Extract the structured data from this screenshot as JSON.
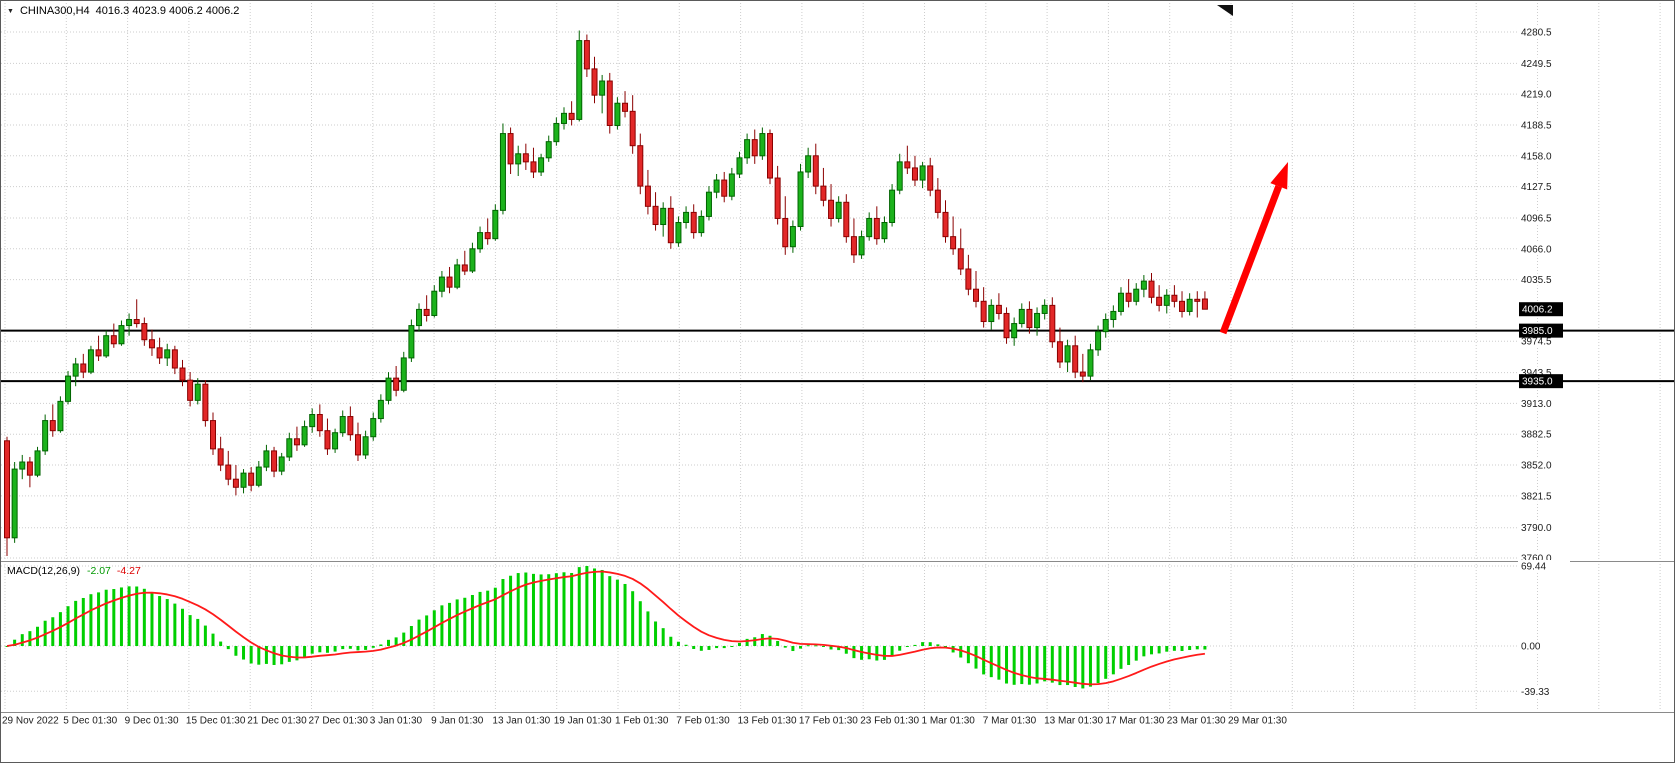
{
  "header": {
    "dropdown_icon": "▼",
    "symbol_period": "CHINA300,H4",
    "quote": "4016.3 4023.9 4006.2 4006.2"
  },
  "macd_header": {
    "label": "MACD(12,26,9)",
    "value_main": "-2.07",
    "value_signal": "-4.27"
  },
  "colors": {
    "background": "#ffffff",
    "grid": "#cdcdcd",
    "bull_fill": "#1CB21C",
    "bull_border": "#006400",
    "bear_fill": "#E22828",
    "bear_border": "#8B0000",
    "hline": "#000000",
    "macd_hist": "#00CF00",
    "macd_signal": "#FF1A1A",
    "arrow": "#FF0000",
    "badge_bg": "#000000",
    "badge_text": "#FFFFFF",
    "axis_text": "#1b1b1b",
    "separator": "#8a8a8a",
    "shift_marker": "#111111"
  },
  "chart_data": {
    "type": "candlestick",
    "symbol": "CHINA300",
    "timeframe": "H4",
    "quote": {
      "open": 4016.3,
      "high": 4023.9,
      "low": 4006.2,
      "close": 4006.2
    },
    "price_axis": {
      "ticks": [
        4280.5,
        4249.5,
        4219.0,
        4188.5,
        4158.0,
        4127.5,
        4096.5,
        4066.0,
        4035.5,
        3974.5,
        3943.5,
        3913.0,
        3882.5,
        3852.0,
        3821.5,
        3790.0,
        3760.0
      ],
      "badges": [
        {
          "label": "4006.2",
          "value": 4006.2,
          "kind": "current-price"
        },
        {
          "label": "3985.0",
          "value": 3985.0,
          "kind": "horizontal-line"
        },
        {
          "label": "3935.0",
          "value": 3935.0,
          "kind": "horizontal-line"
        }
      ]
    },
    "hlines": [
      3985.0,
      3935.0
    ],
    "time_axis": [
      "29 Nov 2022",
      "5 Dec 01:30",
      "9 Dec 01:30",
      "15 Dec 01:30",
      "21 Dec 01:30",
      "27 Dec 01:30",
      "3 Jan 01:30",
      "9 Jan 01:30",
      "13 Jan 01:30",
      "19 Jan 01:30",
      "1 Feb 01:30",
      "7 Feb 01:30",
      "13 Feb 01:30",
      "17 Feb 01:30",
      "23 Feb 01:30",
      "1 Mar 01:30",
      "7 Mar 01:30",
      "13 Mar 01:30",
      "17 Mar 01:30",
      "23 Mar 01:30",
      "29 Mar 01:30"
    ],
    "candles": [
      [
        3876,
        3880,
        3762,
        3780
      ],
      [
        3780,
        3855,
        3775,
        3848
      ],
      [
        3848,
        3862,
        3838,
        3855
      ],
      [
        3855,
        3860,
        3830,
        3842
      ],
      [
        3842,
        3870,
        3840,
        3866
      ],
      [
        3866,
        3902,
        3862,
        3896
      ],
      [
        3896,
        3912,
        3880,
        3886
      ],
      [
        3886,
        3920,
        3884,
        3915
      ],
      [
        3915,
        3945,
        3912,
        3940
      ],
      [
        3940,
        3958,
        3930,
        3952
      ],
      [
        3952,
        3962,
        3938,
        3944
      ],
      [
        3944,
        3970,
        3942,
        3966
      ],
      [
        3966,
        3980,
        3955,
        3960
      ],
      [
        3960,
        3985,
        3958,
        3980
      ],
      [
        3980,
        3992,
        3968,
        3972
      ],
      [
        3972,
        3995,
        3970,
        3990
      ],
      [
        3990,
        4002,
        3980,
        3996
      ],
      [
        3996,
        4016,
        3988,
        3992
      ],
      [
        3992,
        3998,
        3970,
        3976
      ],
      [
        3976,
        3986,
        3960,
        3968
      ],
      [
        3968,
        3978,
        3952,
        3958
      ],
      [
        3958,
        3972,
        3950,
        3966
      ],
      [
        3966,
        3970,
        3942,
        3948
      ],
      [
        3948,
        3956,
        3930,
        3936
      ],
      [
        3936,
        3944,
        3910,
        3916
      ],
      [
        3916,
        3938,
        3912,
        3932
      ],
      [
        3932,
        3936,
        3890,
        3896
      ],
      [
        3896,
        3904,
        3862,
        3868
      ],
      [
        3868,
        3880,
        3846,
        3852
      ],
      [
        3852,
        3866,
        3832,
        3838
      ],
      [
        3838,
        3852,
        3822,
        3830
      ],
      [
        3830,
        3848,
        3824,
        3844
      ],
      [
        3844,
        3850,
        3826,
        3832
      ],
      [
        3832,
        3856,
        3830,
        3850
      ],
      [
        3850,
        3872,
        3846,
        3866
      ],
      [
        3866,
        3870,
        3840,
        3846
      ],
      [
        3846,
        3864,
        3842,
        3860
      ],
      [
        3860,
        3884,
        3856,
        3878
      ],
      [
        3878,
        3890,
        3866,
        3872
      ],
      [
        3872,
        3896,
        3870,
        3890
      ],
      [
        3890,
        3908,
        3884,
        3902
      ],
      [
        3902,
        3912,
        3880,
        3886
      ],
      [
        3886,
        3898,
        3862,
        3868
      ],
      [
        3868,
        3888,
        3864,
        3884
      ],
      [
        3884,
        3906,
        3880,
        3900
      ],
      [
        3900,
        3910,
        3876,
        3882
      ],
      [
        3882,
        3894,
        3856,
        3862
      ],
      [
        3862,
        3886,
        3858,
        3880
      ],
      [
        3880,
        3904,
        3876,
        3898
      ],
      [
        3898,
        3922,
        3894,
        3916
      ],
      [
        3916,
        3944,
        3912,
        3938
      ],
      [
        3938,
        3950,
        3920,
        3926
      ],
      [
        3926,
        3964,
        3924,
        3958
      ],
      [
        3958,
        3996,
        3954,
        3990
      ],
      [
        3990,
        4012,
        3984,
        4006
      ],
      [
        4006,
        4020,
        3994,
        4000
      ],
      [
        4000,
        4030,
        3998,
        4024
      ],
      [
        4024,
        4044,
        4018,
        4038
      ],
      [
        4038,
        4048,
        4022,
        4028
      ],
      [
        4028,
        4056,
        4026,
        4050
      ],
      [
        4050,
        4064,
        4040,
        4044
      ],
      [
        4044,
        4072,
        4042,
        4066
      ],
      [
        4066,
        4088,
        4062,
        4082
      ],
      [
        4082,
        4096,
        4070,
        4076
      ],
      [
        4076,
        4110,
        4074,
        4104
      ],
      [
        4104,
        4190,
        4100,
        4180
      ],
      [
        4180,
        4186,
        4140,
        4150
      ],
      [
        4150,
        4168,
        4138,
        4160
      ],
      [
        4160,
        4170,
        4144,
        4152
      ],
      [
        4152,
        4166,
        4136,
        4142
      ],
      [
        4142,
        4160,
        4138,
        4156
      ],
      [
        4156,
        4178,
        4152,
        4172
      ],
      [
        4172,
        4196,
        4168,
        4190
      ],
      [
        4190,
        4206,
        4184,
        4200
      ],
      [
        4200,
        4212,
        4188,
        4194
      ],
      [
        4194,
        4282,
        4192,
        4272
      ],
      [
        4272,
        4278,
        4236,
        4244
      ],
      [
        4244,
        4256,
        4210,
        4218
      ],
      [
        4218,
        4238,
        4200,
        4232
      ],
      [
        4232,
        4240,
        4180,
        4188
      ],
      [
        4188,
        4216,
        4184,
        4210
      ],
      [
        4210,
        4222,
        4196,
        4202
      ],
      [
        4202,
        4218,
        4160,
        4168
      ],
      [
        4168,
        4180,
        4120,
        4128
      ],
      [
        4128,
        4144,
        4100,
        4108
      ],
      [
        4108,
        4122,
        4084,
        4090
      ],
      [
        4090,
        4112,
        4078,
        4106
      ],
      [
        4106,
        4118,
        4066,
        4072
      ],
      [
        4072,
        4098,
        4068,
        4092
      ],
      [
        4092,
        4108,
        4086,
        4102
      ],
      [
        4102,
        4110,
        4076,
        4082
      ],
      [
        4082,
        4104,
        4078,
        4098
      ],
      [
        4098,
        4128,
        4094,
        4122
      ],
      [
        4122,
        4140,
        4116,
        4134
      ],
      [
        4134,
        4142,
        4112,
        4118
      ],
      [
        4118,
        4146,
        4114,
        4140
      ],
      [
        4140,
        4162,
        4136,
        4156
      ],
      [
        4156,
        4180,
        4150,
        4174
      ],
      [
        4174,
        4184,
        4150,
        4158
      ],
      [
        4158,
        4186,
        4154,
        4180
      ],
      [
        4180,
        4184,
        4130,
        4136
      ],
      [
        4136,
        4148,
        4090,
        4096
      ],
      [
        4096,
        4118,
        4060,
        4068
      ],
      [
        4068,
        4094,
        4062,
        4088
      ],
      [
        4088,
        4150,
        4084,
        4142
      ],
      [
        4142,
        4166,
        4136,
        4158
      ],
      [
        4158,
        4170,
        4120,
        4128
      ],
      [
        4128,
        4146,
        4108,
        4114
      ],
      [
        4114,
        4130,
        4088,
        4096
      ],
      [
        4096,
        4118,
        4092,
        4112
      ],
      [
        4112,
        4120,
        4072,
        4078
      ],
      [
        4078,
        4096,
        4052,
        4060
      ],
      [
        4060,
        4084,
        4056,
        4078
      ],
      [
        4078,
        4102,
        4074,
        4096
      ],
      [
        4096,
        4108,
        4070,
        4076
      ],
      [
        4076,
        4098,
        4072,
        4092
      ],
      [
        4092,
        4130,
        4088,
        4124
      ],
      [
        4124,
        4160,
        4120,
        4152
      ],
      [
        4152,
        4168,
        4140,
        4146
      ],
      [
        4146,
        4158,
        4128,
        4134
      ],
      [
        4134,
        4152,
        4126,
        4148
      ],
      [
        4148,
        4156,
        4118,
        4124
      ],
      [
        4124,
        4136,
        4096,
        4102
      ],
      [
        4102,
        4114,
        4072,
        4078
      ],
      [
        4078,
        4098,
        4060,
        4066
      ],
      [
        4066,
        4086,
        4040,
        4046
      ],
      [
        4046,
        4060,
        4020,
        4026
      ],
      [
        4026,
        4044,
        4008,
        4014
      ],
      [
        4014,
        4028,
        3988,
        3994
      ],
      [
        3994,
        4016,
        3986,
        4010
      ],
      [
        4010,
        4022,
        3996,
        4002
      ],
      [
        4002,
        4008,
        3972,
        3978
      ],
      [
        3978,
        3998,
        3970,
        3992
      ],
      [
        3992,
        4012,
        3988,
        4006
      ],
      [
        4006,
        4014,
        3982,
        3988
      ],
      [
        3988,
        4008,
        3980,
        4002
      ],
      [
        4002,
        4016,
        3996,
        4010
      ],
      [
        4010,
        4018,
        3968,
        3974
      ],
      [
        3974,
        3988,
        3948,
        3954
      ],
      [
        3954,
        3976,
        3944,
        3970
      ],
      [
        3970,
        3980,
        3938,
        3944
      ],
      [
        3944,
        3962,
        3934,
        3940
      ],
      [
        3940,
        3972,
        3936,
        3966
      ],
      [
        3966,
        3990,
        3960,
        3984
      ],
      [
        3984,
        4002,
        3978,
        3996
      ],
      [
        3996,
        4010,
        3988,
        4004
      ],
      [
        4004,
        4028,
        4000,
        4022
      ],
      [
        4022,
        4036,
        4008,
        4014
      ],
      [
        4014,
        4032,
        4010,
        4026
      ],
      [
        4026,
        4040,
        4018,
        4034
      ],
      [
        4034,
        4042,
        4012,
        4018
      ],
      [
        4018,
        4030,
        4004,
        4010
      ],
      [
        4010,
        4026,
        4002,
        4020
      ],
      [
        4020,
        4030,
        4008,
        4014
      ],
      [
        4014,
        4024,
        3998,
        4004
      ],
      [
        4004,
        4022,
        4000,
        4016
      ],
      [
        4016,
        4024,
        3998,
        4014
      ],
      [
        4016.3,
        4023.9,
        4006.2,
        4006.2
      ]
    ],
    "macd": {
      "label": "MACD(12,26,9)",
      "params": [
        12,
        26,
        9
      ],
      "current_macd": -2.07,
      "current_signal": -4.27,
      "axis": [
        {
          "label": "69.44",
          "value": 69.44
        },
        {
          "label": "0.00",
          "value": 0
        },
        {
          "label": "-39.33",
          "value": -39.33
        }
      ],
      "peak": 69.44,
      "trough": -39.33
    },
    "annotations": {
      "arrow": {
        "from": [
          1222,
          332
        ],
        "to": [
          1287,
          161
        ],
        "color": "#FF0000"
      }
    }
  }
}
